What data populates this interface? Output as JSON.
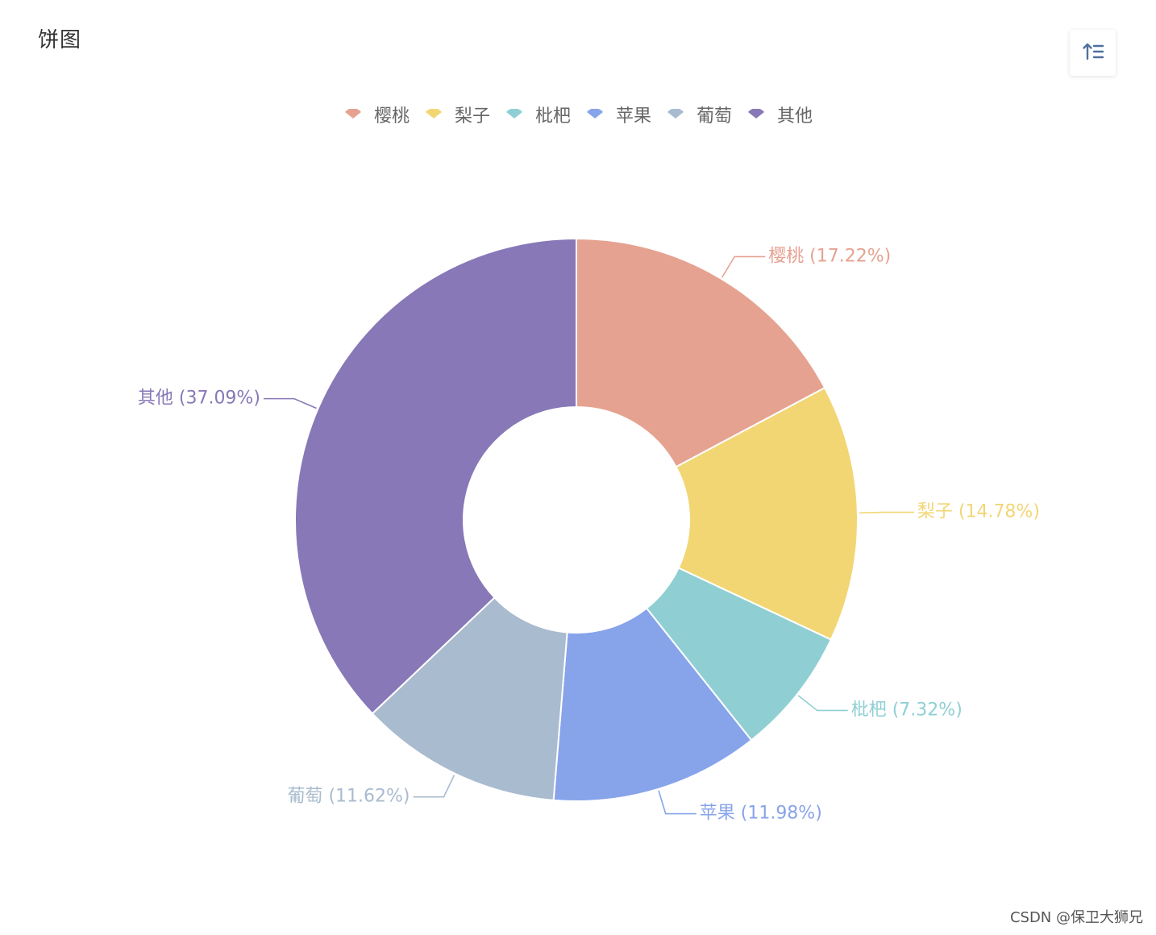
{
  "title": "饼图",
  "toolbar": {
    "sort_icon": "sort-ascending-icon"
  },
  "watermark": "CSDN @保卫大狮兄",
  "chart_data": {
    "type": "pie",
    "donut": true,
    "legend_position": "top-center",
    "categories": [
      "樱桃",
      "梨子",
      "枇杷",
      "苹果",
      "葡萄",
      "其他"
    ],
    "values": [
      17.22,
      14.78,
      7.32,
      11.98,
      11.62,
      37.09
    ],
    "labels": [
      "樱桃 (17.22%)",
      "梨子 (14.78%)",
      "枇杷 (7.32%)",
      "苹果 (11.98%)",
      "葡萄 (11.62%)",
      "其他 (37.09%)"
    ],
    "colors": [
      "#e6a291",
      "#f2d674",
      "#8fcfd4",
      "#87a3ea",
      "#a9bbcf",
      "#8878b7"
    ]
  }
}
